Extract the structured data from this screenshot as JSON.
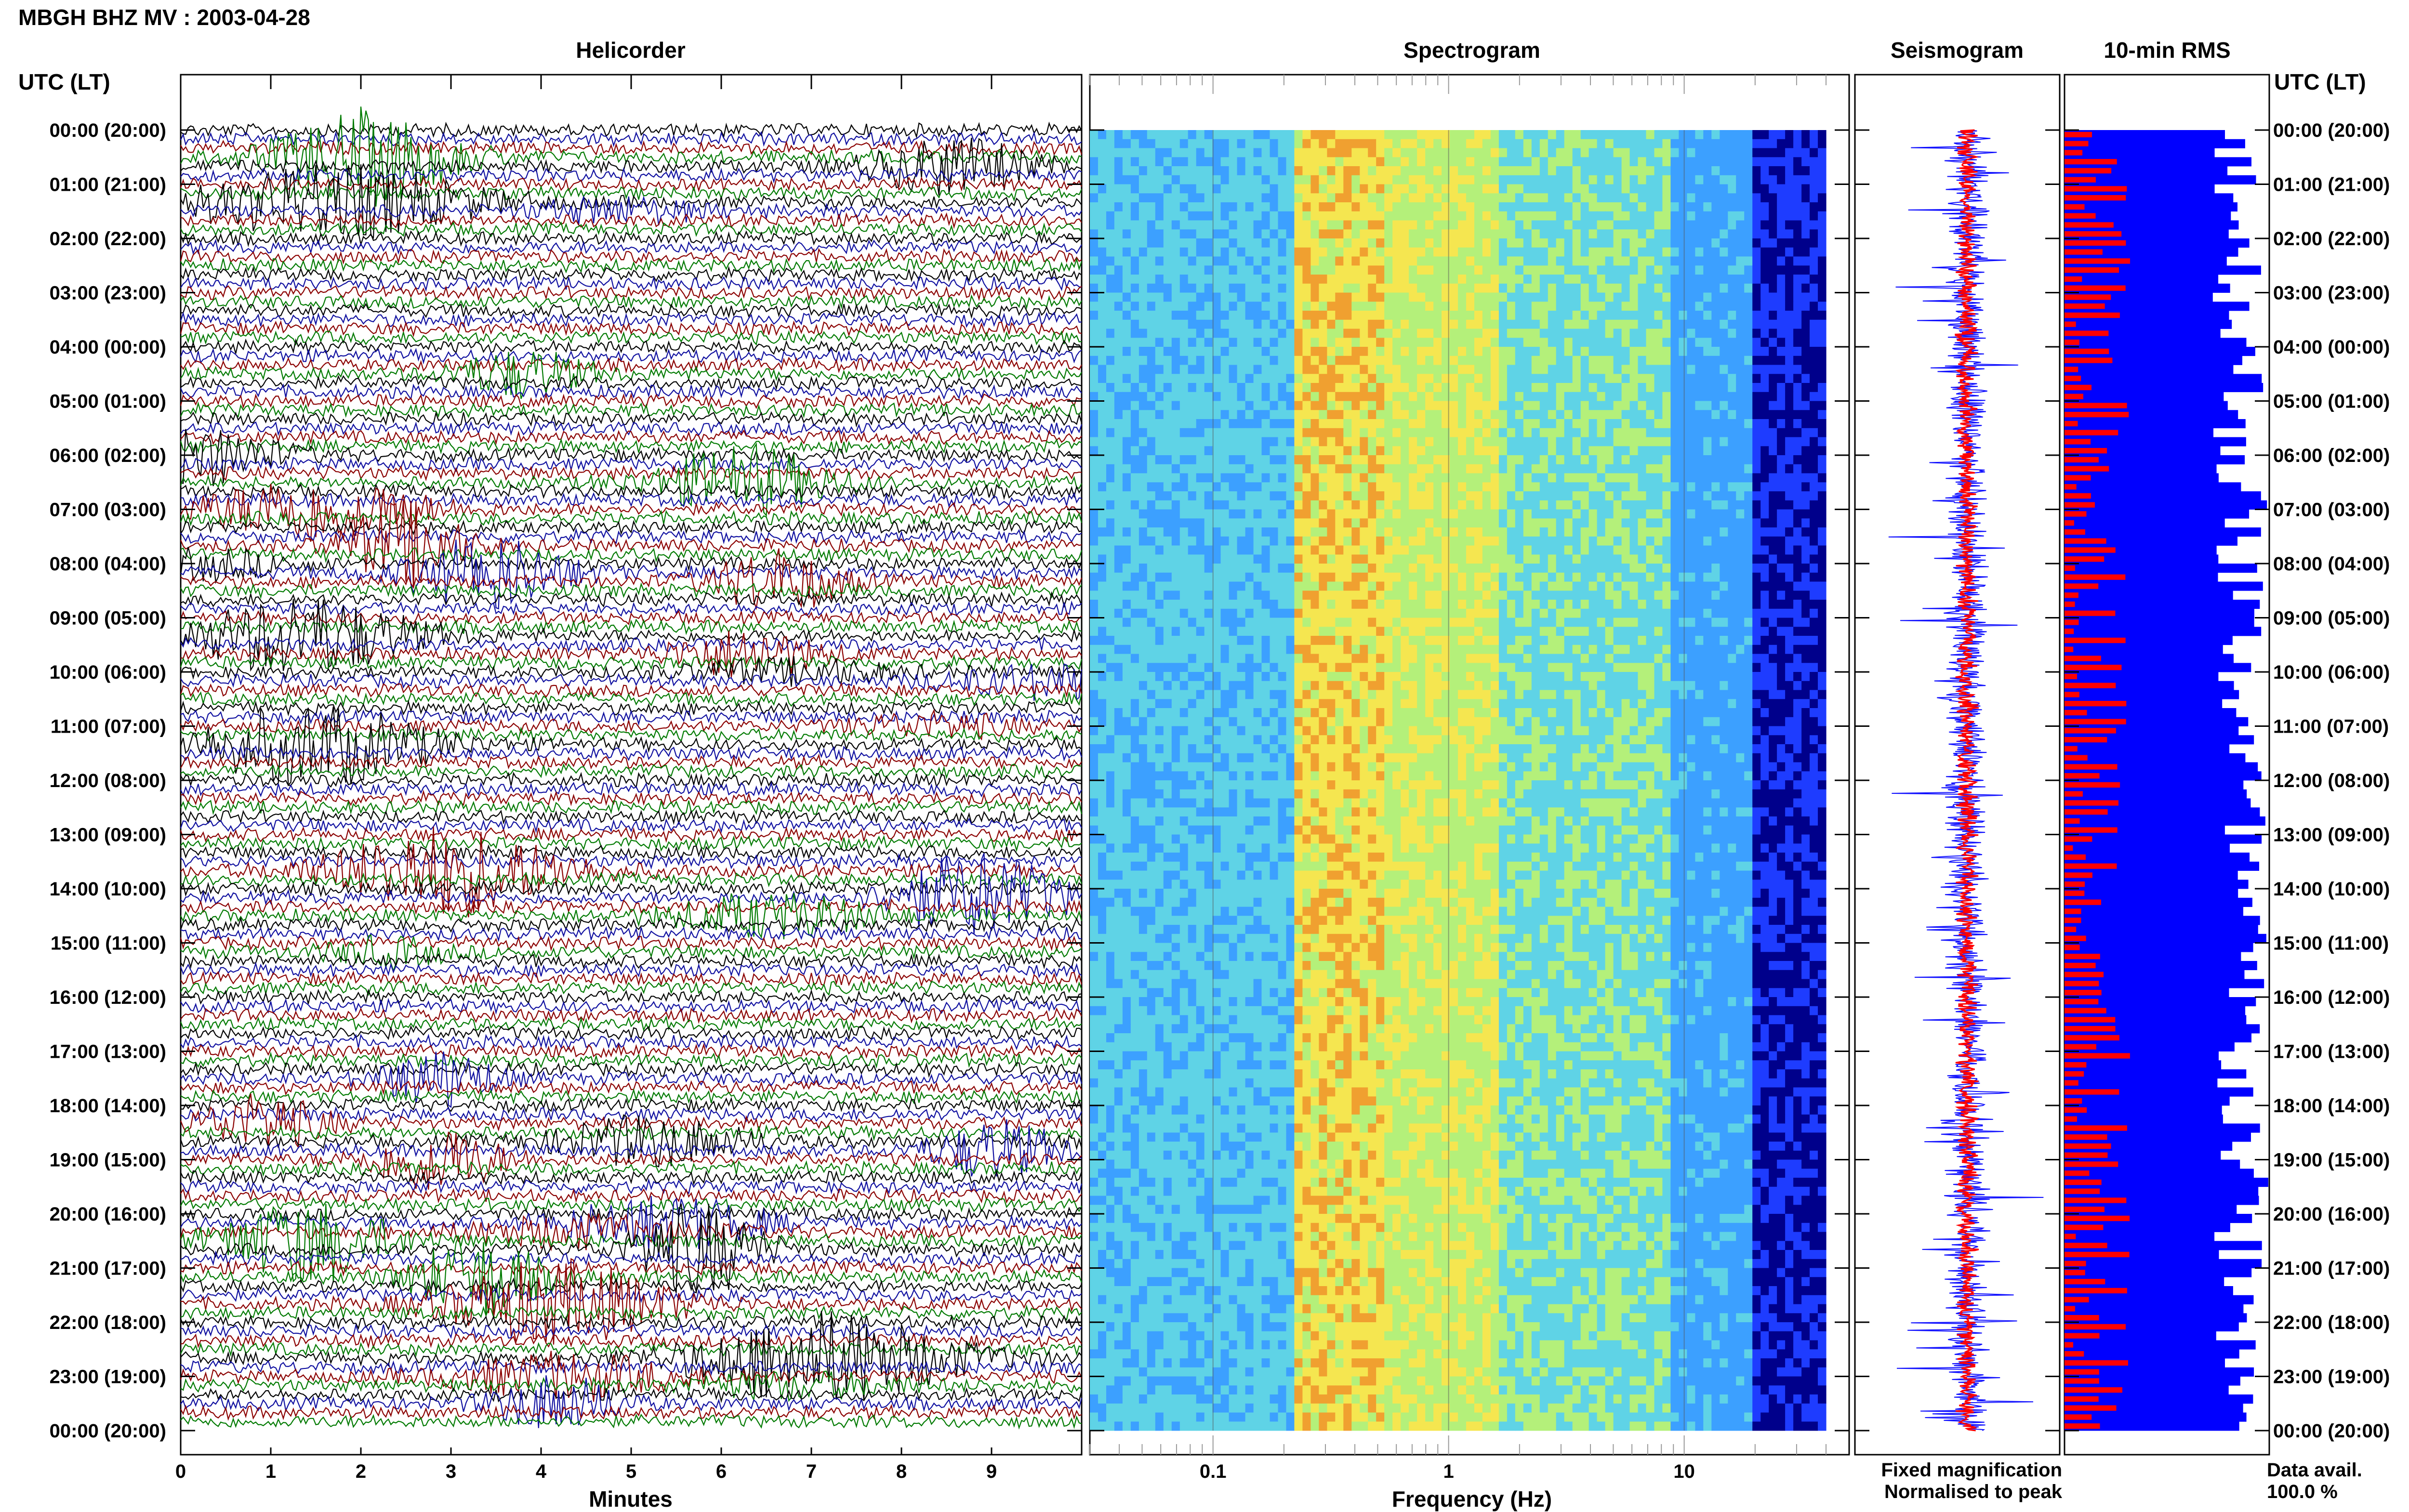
{
  "header": {
    "station_title": "MBGH BHZ MV : 2003-04-28",
    "utc_lt_label": "UTC (LT)"
  },
  "panels": {
    "helicorder": "Helicorder",
    "spectrogram": "Spectrogram",
    "seismogram": "Seismogram",
    "rms": "10-min RMS"
  },
  "helicorder": {
    "xlabel": "Minutes",
    "xticks": [
      "0",
      "1",
      "2",
      "3",
      "4",
      "5",
      "6",
      "7",
      "8",
      "9"
    ],
    "minutes_per_row": 10,
    "trace_colors": [
      "#000000",
      "#1010a0",
      "#8b0000",
      "#007a00"
    ]
  },
  "spectrogram": {
    "xlabel": "Frequency (Hz)",
    "xticks": [
      "0.1",
      "1",
      "10"
    ],
    "x_scale": "log",
    "colormap": [
      "#00008b",
      "#1e3cff",
      "#3ca0ff",
      "#5fd3e6",
      "#b4f07a",
      "#f5e650",
      "#f0a030",
      "#d23c1e"
    ]
  },
  "time_labels": [
    "00:00 (20:00)",
    "01:00 (21:00)",
    "02:00 (22:00)",
    "03:00 (23:00)",
    "04:00 (00:00)",
    "05:00 (01:00)",
    "06:00 (02:00)",
    "07:00 (03:00)",
    "08:00 (04:00)",
    "09:00 (05:00)",
    "10:00 (06:00)",
    "11:00 (07:00)",
    "12:00 (08:00)",
    "13:00 (09:00)",
    "14:00 (10:00)",
    "15:00 (11:00)",
    "16:00 (12:00)",
    "17:00 (13:00)",
    "18:00 (14:00)",
    "19:00 (15:00)",
    "20:00 (16:00)",
    "21:00 (17:00)",
    "22:00 (18:00)",
    "23:00 (19:00)",
    "00:00 (20:00)"
  ],
  "legend": {
    "fixed": "Fixed magnification",
    "normalised": "Normalised to peak",
    "fixed_color": "#1a1aff",
    "normalised_color": "#ff0000"
  },
  "availability": {
    "label": "Data avail.",
    "value": "100.0 %"
  },
  "chart_data": {
    "type": "heatmap",
    "title": "MBGH BHZ MV : 2003-04-28",
    "row_unit_minutes": 10,
    "rows": 144,
    "rms_colors": {
      "fixed": "#0000ff",
      "normalised": "#ff0000"
    }
  }
}
